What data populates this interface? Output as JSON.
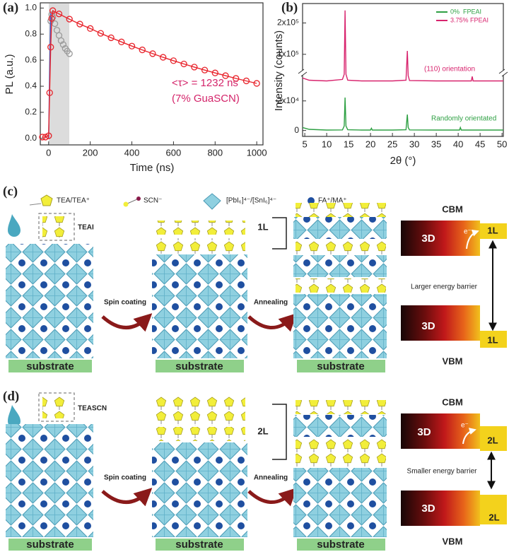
{
  "chart_data": [
    {
      "type": "line",
      "label": "(a)",
      "xlabel": "Time (ns)",
      "ylabel": "PL (a.u.)",
      "xlim": [
        -40,
        1030
      ],
      "ylim": [
        -0.05,
        1.04
      ],
      "xticks": [
        0,
        200,
        400,
        600,
        800,
        1000
      ],
      "yticks": [
        {
          "value": 0,
          "label": "0.0"
        },
        {
          "value": 0.2,
          "label": "0.2"
        },
        {
          "value": 0.4,
          "label": "0.4"
        },
        {
          "value": 0.6,
          "label": "0.6"
        },
        {
          "value": 0.8,
          "label": "0.8"
        },
        {
          "value": 1,
          "label": "1.0"
        }
      ],
      "series": [
        {
          "color": "#9a9a9a",
          "marker": "open-circle",
          "line": false,
          "x": [
            0,
            10,
            15,
            20,
            30,
            40,
            50,
            60,
            70,
            80,
            90,
            100
          ],
          "values": [
            0.02,
            0.9,
            0.95,
            0.93,
            0.88,
            0.83,
            0.79,
            0.75,
            0.72,
            0.69,
            0.67,
            0.65
          ]
        },
        {
          "color": "#3a55c8",
          "marker": "none",
          "line": true,
          "x": [
            0,
            5,
            10
          ],
          "values": [
            0.0,
            0.5,
            0.96
          ]
        },
        {
          "color": "#e8242c",
          "marker": "open-circle",
          "line": true,
          "x": [
            -30,
            -15,
            0,
            5,
            10,
            15,
            20,
            50,
            100,
            150,
            200,
            250,
            300,
            350,
            400,
            450,
            500,
            550,
            600,
            650,
            700,
            750,
            800,
            850,
            900,
            950,
            1000
          ],
          "values": [
            0.01,
            0.01,
            0.02,
            0.35,
            0.7,
            0.92,
            0.98,
            0.955,
            0.915,
            0.877,
            0.843,
            0.806,
            0.772,
            0.74,
            0.708,
            0.679,
            0.65,
            0.622,
            0.596,
            0.571,
            0.547,
            0.524,
            0.502,
            0.481,
            0.46,
            0.441,
            0.422
          ]
        }
      ],
      "annotations": [
        {
          "text": "<τ> = 1232 ns",
          "color": "#d4246a"
        },
        {
          "text": "(7% GuaSCN)",
          "color": "#d4246a"
        }
      ]
    },
    {
      "type": "line",
      "label": "(b)",
      "xlabel": "2θ (°)",
      "ylabel": "Intensity (counts)",
      "xlim": [
        4.5,
        50.3
      ],
      "ylim": [
        -4000,
        262000
      ],
      "ybreak": [
        39000,
        41000
      ],
      "xticks": [
        5,
        10,
        15,
        20,
        25,
        30,
        35,
        40,
        45,
        50
      ],
      "yticks": [
        0,
        {
          "value": 20000,
          "label": "2x10⁴"
        },
        {
          "value": 100000,
          "label": "1x10⁵"
        },
        {
          "value": 200000,
          "label": "2x10⁵"
        }
      ],
      "legend": "upper right",
      "x": [
        4.5,
        6,
        10,
        13.6,
        14.0,
        14.2,
        14.4,
        14.8,
        18,
        20,
        20.2,
        20.4,
        25,
        28.1,
        28.4,
        28.6,
        28.9,
        35,
        40.3,
        40.5,
        40.7,
        43.0,
        43.2,
        43.4,
        50.3
      ],
      "series": [
        {
          "name": "0%  FPEAI",
          "color": "#2ea043",
          "marker": "none",
          "line": true,
          "values": [
            2000,
            800,
            300,
            400,
            3000,
            22300,
            3000,
            500,
            300,
            300,
            1500,
            300,
            300,
            500,
            10800,
            2000,
            400,
            300,
            300,
            2000,
            300,
            300,
            300,
            300,
            300
          ]
        },
        {
          "name": "3.75% FPEAI",
          "color": "#d8246e",
          "marker": "none",
          "line": true,
          "values": [
            35500,
            34000,
            33500,
            34500,
            38000,
            240000,
            38000,
            34000,
            33500,
            33500,
            33500,
            33500,
            33500,
            34000,
            111000,
            37000,
            33800,
            33500,
            33500,
            33500,
            33500,
            33500,
            36500,
            33500,
            33500
          ]
        }
      ],
      "annotations": [
        {
          "text": "(110) orientation",
          "color": "#d8246e"
        },
        {
          "text": "Randomly orientated",
          "color": "#2ea043"
        }
      ]
    }
  ],
  "panel_c": {
    "label": "(c)",
    "legend": [
      "TEA/TEA⁺",
      "SCN⁻",
      "[PbI₆]⁴⁻/[SnI₆]⁴⁻",
      "FA⁺/MA⁺"
    ],
    "precursor": "TEAI",
    "steps": [
      "Spin coating",
      "Annealing"
    ],
    "substrates": [
      "substrate",
      "substrate",
      "substrate"
    ],
    "layer": "1L",
    "energy": {
      "cbm": "CBM",
      "bulk": [
        "3D",
        "3D"
      ],
      "electron": "e⁻",
      "layer": [
        "1L",
        "1L"
      ],
      "barrier": "Larger energy barrier",
      "vbm": "VBM"
    }
  },
  "panel_d": {
    "label": "(d)",
    "precursor": "TEASCN",
    "steps": [
      "Spin coating",
      "Annealing"
    ],
    "substrates": [
      "substrate",
      "substrate",
      "substrate"
    ],
    "layer": "2L",
    "energy": {
      "cbm": "CBM",
      "bulk": [
        "3D",
        "3D"
      ],
      "electron": "e⁻",
      "layer": [
        "2L",
        "2L"
      ],
      "barrier": "Smaller energy barrier",
      "vbm": "VBM"
    }
  }
}
